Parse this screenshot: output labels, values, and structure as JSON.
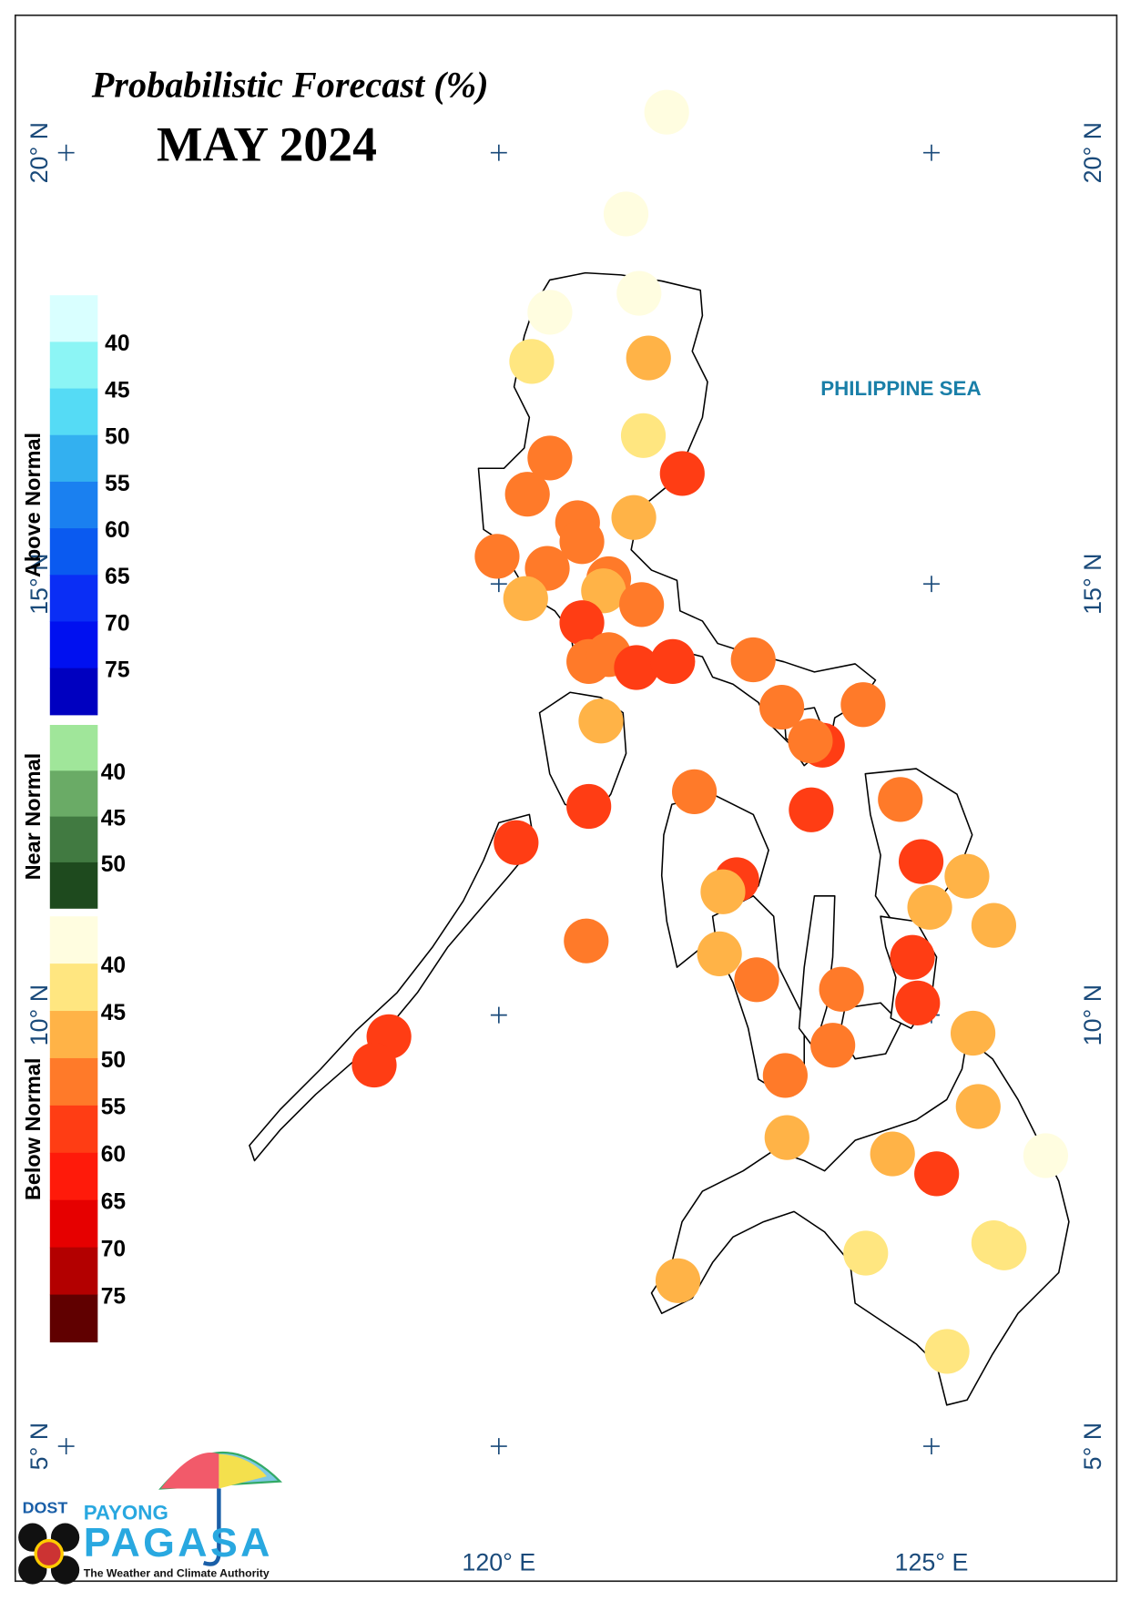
{
  "map": {
    "title": "Probabilistic Forecast (%)",
    "subtitle": "MAY 2024",
    "sea_label": "PHILIPPINE SEA",
    "lat_ticks": [
      {
        "value": 20,
        "label": "20° N"
      },
      {
        "value": 15,
        "label": "15° N"
      },
      {
        "value": 10,
        "label": "10° N"
      },
      {
        "value": 5,
        "label": "5° N"
      }
    ],
    "lon_ticks": [
      {
        "value": 120,
        "label": "120° E"
      },
      {
        "value": 125,
        "label": "125° E"
      }
    ],
    "legend": [
      {
        "name": "Above Normal",
        "labels": [
          40,
          45,
          50,
          55,
          60,
          65,
          70,
          75
        ],
        "colors": [
          "#d9ffff",
          "#8cf5f5",
          "#55dbf5",
          "#33b0f0",
          "#1a80f0",
          "#0a5af0",
          "#0a2ef5",
          "#0010f0",
          "#0000c0"
        ]
      },
      {
        "name": "Near Normal",
        "labels": [
          40,
          45,
          50
        ],
        "colors": [
          "#a0e69a",
          "#6aab66",
          "#417a41",
          "#1e4a1e"
        ]
      },
      {
        "name": "Below Normal",
        "labels": [
          40,
          45,
          50,
          55,
          60,
          65,
          70,
          75
        ],
        "colors": [
          "#fffde0",
          "#ffe680",
          "#ffb347",
          "#ff7a29",
          "#ff3d14",
          "#ff1a0a",
          "#e60000",
          "#b30000",
          "#600000"
        ]
      }
    ],
    "stations": [
      {
        "lon": 121.94,
        "lat": 20.47,
        "color": "#fffde0"
      },
      {
        "lon": 121.47,
        "lat": 19.29,
        "color": "#fffde0"
      },
      {
        "lon": 121.62,
        "lat": 18.37,
        "color": "#fffde0"
      },
      {
        "lon": 120.59,
        "lat": 18.15,
        "color": "#fffde0"
      },
      {
        "lon": 120.38,
        "lat": 17.58,
        "color": "#ffe680"
      },
      {
        "lon": 121.73,
        "lat": 17.62,
        "color": "#ffb347"
      },
      {
        "lon": 121.67,
        "lat": 16.72,
        "color": "#ffe680"
      },
      {
        "lon": 120.59,
        "lat": 16.46,
        "color": "#ff7a29"
      },
      {
        "lon": 122.12,
        "lat": 16.28,
        "color": "#ff3d14"
      },
      {
        "lon": 120.33,
        "lat": 16.04,
        "color": "#ff7a29"
      },
      {
        "lon": 121.56,
        "lat": 15.77,
        "color": "#ffb347"
      },
      {
        "lon": 120.91,
        "lat": 15.71,
        "color": "#ff7a29"
      },
      {
        "lon": 120.96,
        "lat": 15.49,
        "color": "#ff7a29"
      },
      {
        "lon": 119.98,
        "lat": 15.32,
        "color": "#ff7a29"
      },
      {
        "lon": 120.56,
        "lat": 15.18,
        "color": "#ff7a29"
      },
      {
        "lon": 121.27,
        "lat": 15.06,
        "color": "#ff7a29"
      },
      {
        "lon": 121.21,
        "lat": 14.92,
        "color": "#ffb347"
      },
      {
        "lon": 120.31,
        "lat": 14.83,
        "color": "#ffb347"
      },
      {
        "lon": 121.65,
        "lat": 14.76,
        "color": "#ff7a29"
      },
      {
        "lon": 120.96,
        "lat": 14.55,
        "color": "#ff3d14"
      },
      {
        "lon": 121.04,
        "lat": 14.1,
        "color": "#ff7a29"
      },
      {
        "lon": 121.27,
        "lat": 14.18,
        "color": "#ff7a29"
      },
      {
        "lon": 121.59,
        "lat": 14.03,
        "color": "#ff3d14"
      },
      {
        "lon": 122.01,
        "lat": 14.1,
        "color": "#ff3d14"
      },
      {
        "lon": 122.94,
        "lat": 14.12,
        "color": "#ff7a29"
      },
      {
        "lon": 123.27,
        "lat": 13.57,
        "color": "#ff7a29"
      },
      {
        "lon": 124.21,
        "lat": 13.6,
        "color": "#ff7a29"
      },
      {
        "lon": 123.74,
        "lat": 13.13,
        "color": "#ff3d14"
      },
      {
        "lon": 123.6,
        "lat": 13.18,
        "color": "#ff7a29"
      },
      {
        "lon": 121.18,
        "lat": 13.41,
        "color": "#ffb347"
      },
      {
        "lon": 122.26,
        "lat": 12.59,
        "color": "#ff7a29"
      },
      {
        "lon": 121.04,
        "lat": 12.42,
        "color": "#ff3d14"
      },
      {
        "lon": 123.61,
        "lat": 12.38,
        "color": "#ff3d14"
      },
      {
        "lon": 124.64,
        "lat": 12.5,
        "color": "#ff7a29"
      },
      {
        "lon": 120.2,
        "lat": 12.0,
        "color": "#ff3d14"
      },
      {
        "lon": 124.88,
        "lat": 11.78,
        "color": "#ff3d14"
      },
      {
        "lon": 122.75,
        "lat": 11.57,
        "color": "#ff3d14"
      },
      {
        "lon": 122.59,
        "lat": 11.43,
        "color": "#ffb347"
      },
      {
        "lon": 125.41,
        "lat": 11.61,
        "color": "#ffb347"
      },
      {
        "lon": 124.98,
        "lat": 11.25,
        "color": "#ffb347"
      },
      {
        "lon": 125.72,
        "lat": 11.04,
        "color": "#ffb347"
      },
      {
        "lon": 121.01,
        "lat": 10.86,
        "color": "#ff7a29"
      },
      {
        "lon": 122.55,
        "lat": 10.71,
        "color": "#ffb347"
      },
      {
        "lon": 124.78,
        "lat": 10.67,
        "color": "#ff3d14"
      },
      {
        "lon": 122.98,
        "lat": 10.41,
        "color": "#ff7a29"
      },
      {
        "lon": 123.96,
        "lat": 10.3,
        "color": "#ff7a29"
      },
      {
        "lon": 124.84,
        "lat": 10.14,
        "color": "#ff3d14"
      },
      {
        "lon": 125.48,
        "lat": 9.79,
        "color": "#ffb347"
      },
      {
        "lon": 118.73,
        "lat": 9.75,
        "color": "#ff3d14"
      },
      {
        "lon": 118.56,
        "lat": 9.42,
        "color": "#ff3d14"
      },
      {
        "lon": 123.86,
        "lat": 9.65,
        "color": "#ff7a29"
      },
      {
        "lon": 123.31,
        "lat": 9.3,
        "color": "#ff7a29"
      },
      {
        "lon": 125.54,
        "lat": 8.94,
        "color": "#ffb347"
      },
      {
        "lon": 123.33,
        "lat": 8.58,
        "color": "#ffb347"
      },
      {
        "lon": 126.32,
        "lat": 8.37,
        "color": "#fffde0"
      },
      {
        "lon": 124.55,
        "lat": 8.39,
        "color": "#ffb347"
      },
      {
        "lon": 125.06,
        "lat": 8.16,
        "color": "#ff3d14"
      },
      {
        "lon": 124.24,
        "lat": 7.24,
        "color": "#ffe680"
      },
      {
        "lon": 125.72,
        "lat": 7.36,
        "color": "#ffe680"
      },
      {
        "lon": 125.84,
        "lat": 7.3,
        "color": "#ffe680"
      },
      {
        "lon": 122.07,
        "lat": 6.92,
        "color": "#ffb347"
      },
      {
        "lon": 125.18,
        "lat": 6.1,
        "color": "#ffe680"
      }
    ],
    "logo": {
      "agency": "DOST",
      "top": "PAYONG",
      "name": "PAGASA",
      "tagline": "The Weather and Climate Authority"
    }
  }
}
